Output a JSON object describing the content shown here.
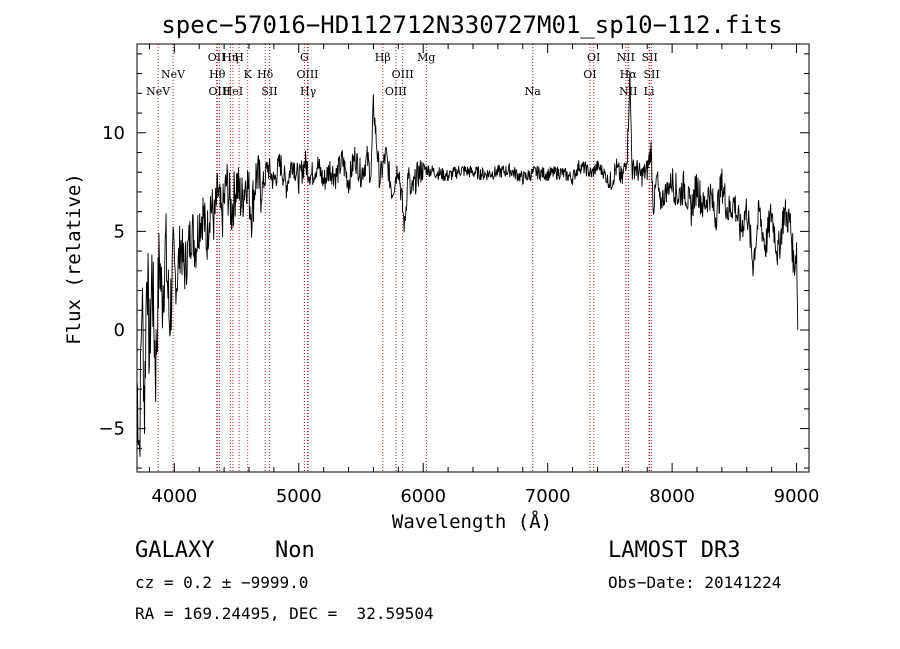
{
  "chart_data": {
    "type": "line",
    "title": "spec−57016−HD112712N330727M01_sp10−112.fits",
    "xlabel": "Wavelength (Å)",
    "ylabel": "Flux (relative)",
    "xlim": [
      3700,
      9100
    ],
    "ylim": [
      -7.2,
      14.5
    ],
    "xticks": [
      4000,
      5000,
      6000,
      7000,
      8000,
      9000
    ],
    "yticks": [
      -5,
      0,
      5,
      10
    ],
    "xtick_labels": [
      "4000",
      "5000",
      "6000",
      "7000",
      "8000",
      "9000"
    ],
    "ytick_labels": [
      "−5",
      "0",
      "5",
      "10"
    ],
    "grid": false,
    "series": [
      {
        "x": [
          3700,
          3720,
          3740,
          3760,
          3780,
          3800,
          3820,
          3850,
          3880,
          3900,
          3930,
          3960,
          3990,
          4020,
          4050,
          4080,
          4110,
          4140,
          4170,
          4200,
          4230,
          4260,
          4290,
          4320,
          4350,
          4380,
          4420,
          4460,
          4500,
          4540,
          4580,
          4620,
          4660,
          4700,
          4750,
          4800,
          4850,
          4900,
          4950,
          5000,
          5050,
          5100,
          5150,
          5200,
          5250,
          5300,
          5350,
          5400,
          5450,
          5500,
          5550,
          5580,
          5600,
          5650,
          5700,
          5750,
          5800,
          5850,
          5880,
          5900,
          5950,
          6000,
          6100,
          6200,
          6300,
          6400,
          6500,
          6600,
          6700,
          6800,
          6900,
          7000,
          7100,
          7200,
          7250,
          7300,
          7350,
          7400,
          7450,
          7500,
          7550,
          7600,
          7640,
          7660,
          7680,
          7700,
          7750,
          7800,
          7830,
          7850,
          7880,
          7900,
          7950,
          8000,
          8050,
          8100,
          8150,
          8200,
          8250,
          8300,
          8350,
          8400,
          8450,
          8500,
          8550,
          8600,
          8650,
          8700,
          8750,
          8800,
          8850,
          8900,
          8950,
          8980,
          9000,
          9010
        ],
        "values": [
          -2.5,
          -6,
          2,
          -4,
          4,
          -1.5,
          3,
          -2,
          3.8,
          1.5,
          4.2,
          0.5,
          3,
          2.5,
          4.5,
          3,
          4,
          5.2,
          4.2,
          5.5,
          6,
          4.5,
          6.5,
          5.5,
          7,
          5.5,
          7.5,
          6,
          7.5,
          6.5,
          7.8,
          6,
          8,
          7,
          8.3,
          7.5,
          8.5,
          7.3,
          8.6,
          7.6,
          8.5,
          7.8,
          8.4,
          7.5,
          8.2,
          7.8,
          8.6,
          7.5,
          8.8,
          7.9,
          8.7,
          7.8,
          11.4,
          7.6,
          8.9,
          7,
          8.4,
          5.2,
          8.1,
          6.8,
          7.8,
          8.2,
          8.0,
          7.8,
          8.1,
          8.0,
          7.9,
          8.0,
          8.1,
          7.7,
          8.0,
          7.9,
          8.0,
          7.7,
          8.3,
          8.2,
          7.9,
          8.3,
          8.0,
          7.4,
          8.2,
          7.6,
          9.0,
          12.8,
          8.0,
          8.3,
          7.8,
          8.1,
          9.2,
          6.2,
          7.8,
          6.4,
          7.0,
          7.6,
          6.8,
          7.3,
          6.0,
          7.4,
          6.2,
          7.0,
          5.8,
          7.4,
          6.0,
          6.5,
          5.0,
          6.2,
          3.4,
          6.0,
          4.2,
          6.0,
          3.8,
          6.0,
          5.4,
          3.2,
          4.2,
          0.0
        ]
      }
    ],
    "lines": [
      {
        "label": "NeV",
        "x": 3870,
        "row": 3
      },
      {
        "label": "NeV",
        "x": 3990,
        "row": 2
      },
      {
        "label": "OII",
        "x": 4340,
        "row": 1
      },
      {
        "label": "Hθ",
        "x": 4345,
        "row": 2
      },
      {
        "label": "OIII",
        "x": 4363,
        "row": 3
      },
      {
        "label": "Hη",
        "x": 4450,
        "row": 1
      },
      {
        "label": "HeI",
        "x": 4471,
        "row": 3
      },
      {
        "label": "H",
        "x": 4520,
        "row": 1
      },
      {
        "label": "K",
        "x": 4590,
        "row": 2
      },
      {
        "label": "Hδ",
        "x": 4730,
        "row": 2
      },
      {
        "label": "SII",
        "x": 4765,
        "row": 3
      },
      {
        "label": "G",
        "x": 5045,
        "row": 1
      },
      {
        "label": "OIII",
        "x": 5070,
        "row": 2
      },
      {
        "label": "Hγ",
        "x": 5075,
        "row": 3
      },
      {
        "label": "Hβ",
        "x": 5675,
        "row": 1
      },
      {
        "label": "OIII",
        "x": 5780,
        "row": 3
      },
      {
        "label": "OIII",
        "x": 5835,
        "row": 2
      },
      {
        "label": "Mg",
        "x": 6025,
        "row": 1
      },
      {
        "label": "Na",
        "x": 6880,
        "row": 3
      },
      {
        "label": "OI",
        "x": 7370,
        "row": 1
      },
      {
        "label": "OI",
        "x": 7340,
        "row": 2
      },
      {
        "label": "NII",
        "x": 7628,
        "row": 1
      },
      {
        "label": "Hα",
        "x": 7648,
        "row": 2
      },
      {
        "label": "NII",
        "x": 7648,
        "row": 3
      },
      {
        "label": "SII",
        "x": 7820,
        "row": 1
      },
      {
        "label": "SII",
        "x": 7835,
        "row": 2
      },
      {
        "label": "Li",
        "x": 7815,
        "row": 3
      }
    ]
  },
  "info": {
    "class": "GALAXY",
    "subclass": "Non",
    "survey": "LAMOST DR3",
    "cz": "cz = 0.2 ± −9999.0",
    "obs_date": "Obs−Date: 20141224",
    "coords": "RA = 169.24495, DEC =  32.59504"
  },
  "colors": {
    "spectrum": "#000000",
    "line_markers": "#b22222",
    "axes": "#000000"
  }
}
